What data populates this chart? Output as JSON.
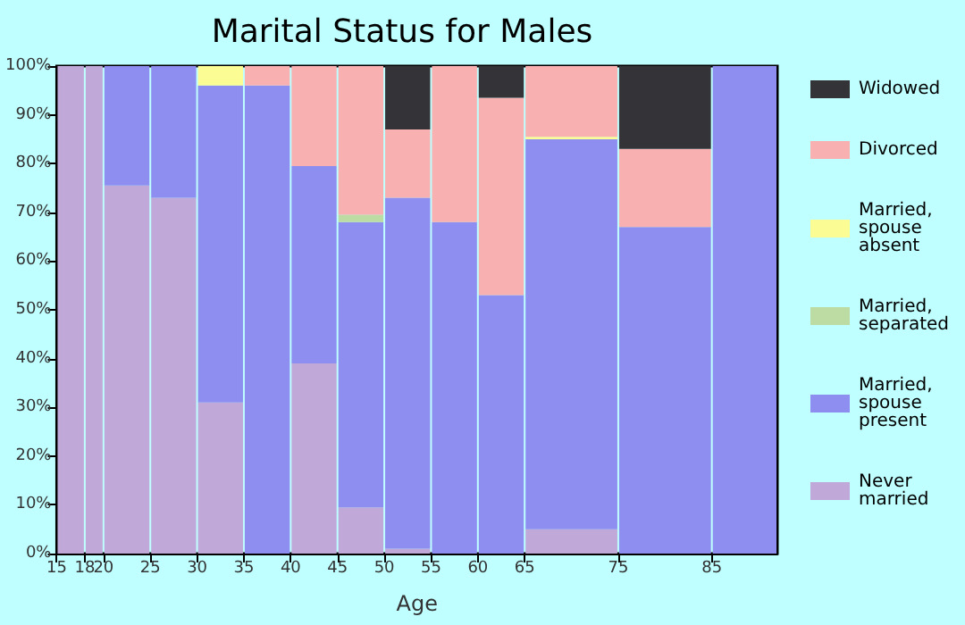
{
  "chart_data": {
    "type": "bar",
    "title": "Marital Status for Males",
    "xlabel": "Age",
    "stacked": true,
    "x": [
      16.5,
      19,
      22.5,
      27.5,
      32.5,
      37.5,
      42.5,
      47.5,
      52.5,
      57.5,
      62.5,
      70,
      80,
      88.5
    ],
    "xlim": [
      15,
      92
    ],
    "xticks": [
      15,
      18,
      20,
      25,
      30,
      35,
      40,
      45,
      50,
      55,
      60,
      65,
      75,
      85
    ],
    "ylim": [
      0,
      100
    ],
    "yticks": [
      {
        "value": 0,
        "label": "0%"
      },
      {
        "value": 10,
        "label": "10%"
      },
      {
        "value": 20,
        "label": "20%"
      },
      {
        "value": 30,
        "label": "30%"
      },
      {
        "value": 40,
        "label": "40%"
      },
      {
        "value": 50,
        "label": "50%"
      },
      {
        "value": 60,
        "label": "60%"
      },
      {
        "value": 70,
        "label": "70%"
      },
      {
        "value": 80,
        "label": "80%"
      },
      {
        "value": 90,
        "label": "90%"
      },
      {
        "value": 100,
        "label": "100%"
      }
    ],
    "series": [
      {
        "name": "Never married",
        "color": "#c0a8d8",
        "values": [
          100,
          100,
          75.5,
          73,
          31,
          0,
          39,
          9.5,
          1,
          0,
          0,
          5,
          0,
          0
        ]
      },
      {
        "name": "Married, spouse present",
        "color": "#8e8ef0",
        "values": [
          0,
          0,
          24.5,
          27,
          65,
          96,
          40.5,
          58.5,
          72,
          68,
          53,
          80,
          67,
          100
        ]
      },
      {
        "name": "Married, separated",
        "color": "#bcdca4",
        "values": [
          0,
          0,
          0,
          0,
          0,
          0,
          0,
          1.5,
          0,
          0,
          0,
          0,
          0,
          0
        ]
      },
      {
        "name": "Married, spouse absent",
        "color": "#fcfc94",
        "values": [
          0,
          0,
          0,
          0,
          4,
          0,
          0,
          0,
          0,
          0,
          0,
          0.5,
          0,
          0
        ]
      },
      {
        "name": "Divorced",
        "color": "#f8b0b0",
        "values": [
          0,
          0,
          0,
          0,
          0,
          4,
          20.5,
          30.5,
          14,
          32,
          40.5,
          14.5,
          16,
          0
        ]
      },
      {
        "name": "Widowed",
        "color": "#333338",
        "values": [
          0,
          0,
          0,
          0,
          0,
          0,
          0,
          0,
          13,
          0,
          6.5,
          0,
          17,
          0
        ]
      }
    ],
    "legend": "right"
  }
}
